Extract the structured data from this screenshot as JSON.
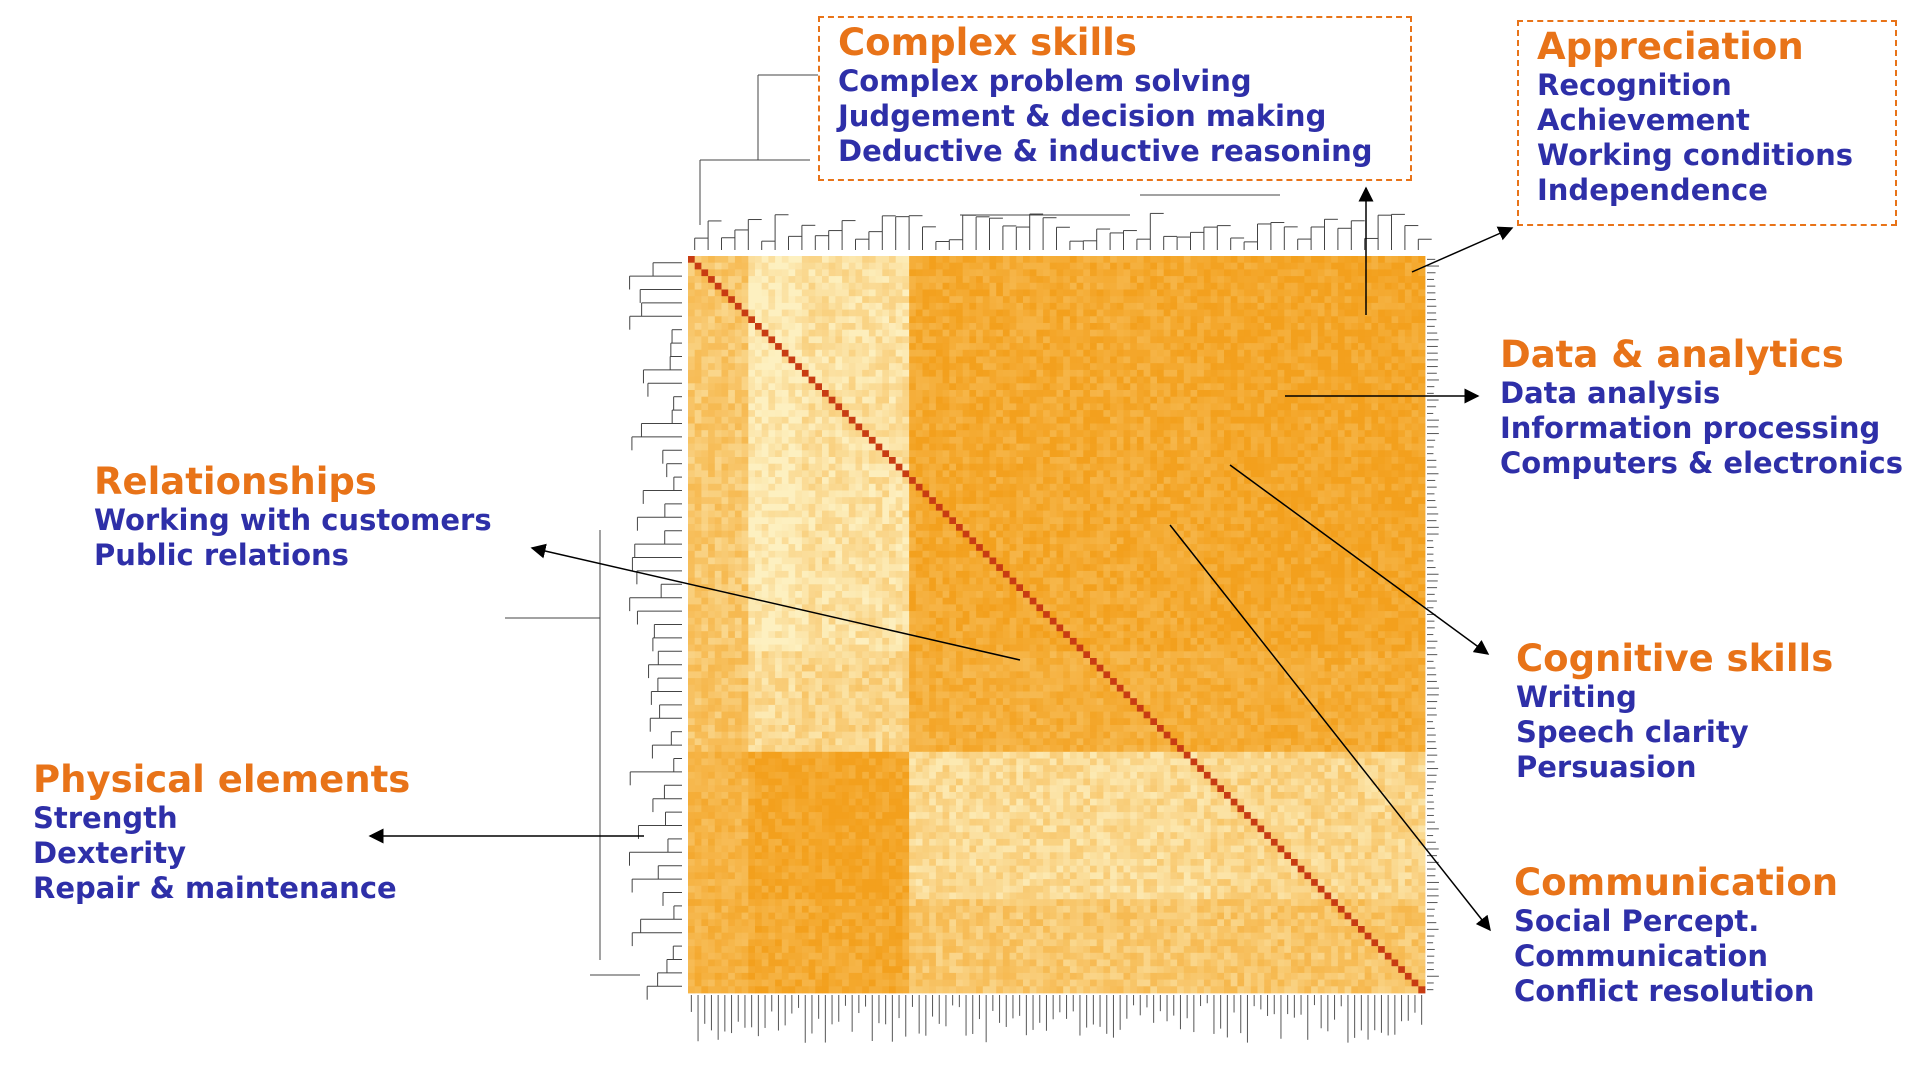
{
  "chart_data": {
    "type": "heatmap",
    "title": "",
    "xlabel": "",
    "ylabel": "",
    "colors": {
      "low": "#fdf0c0",
      "mid": "#f7be5a",
      "high": "#f3a01d",
      "diagonal": "#c83c12",
      "title": "#e87318",
      "item": "#2e2fa8"
    },
    "clusters": [
      {
        "id": "complex",
        "title": "Complex skills",
        "items": [
          "Complex problem solving",
          "Judgement & decision making",
          "Deductive & inductive reasoning"
        ]
      },
      {
        "id": "appreciation",
        "title": "Appreciation",
        "items": [
          "Recognition",
          "Achievement",
          "Working conditions",
          "Independence"
        ]
      },
      {
        "id": "data",
        "title": "Data & analytics",
        "items": [
          "Data analysis",
          "Information processing",
          "Computers & electronics"
        ]
      },
      {
        "id": "relationships",
        "title": "Relationships",
        "items": [
          "Working with customers",
          "Public relations"
        ]
      },
      {
        "id": "cognitive",
        "title": "Cognitive skills",
        "items": [
          "Writing",
          "Speech clarity",
          "Persuasion"
        ]
      },
      {
        "id": "physical",
        "title": "Physical elements",
        "items": [
          "Strength",
          "Dexterity",
          "Repair & maintenance"
        ]
      },
      {
        "id": "communication",
        "title": "Communication",
        "items": [
          "Social Percept.",
          "Communication",
          "Conflict resolution"
        ]
      }
    ]
  }
}
